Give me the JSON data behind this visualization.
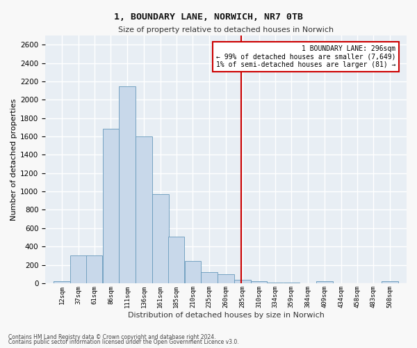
{
  "title1": "1, BOUNDARY LANE, NORWICH, NR7 0TB",
  "title2": "Size of property relative to detached houses in Norwich",
  "xlabel": "Distribution of detached houses by size in Norwich",
  "ylabel": "Number of detached properties",
  "bar_color": "#c8d8ea",
  "bar_edge_color": "#6699bb",
  "background_color": "#e8eef4",
  "figure_color": "#f8f8f8",
  "grid_color": "#ffffff",
  "vline_x": 296,
  "vline_color": "#cc0000",
  "annotation_text": "1 BOUNDARY LANE: 296sqm\n← 99% of detached houses are smaller (7,649)\n1% of semi-detached houses are larger (81) →",
  "annotation_box_color": "#cc0000",
  "footnote1": "Contains HM Land Registry data © Crown copyright and database right 2024.",
  "footnote2": "Contains public sector information licensed under the Open Government Licence v3.0.",
  "bins": [
    12,
    37,
    61,
    86,
    111,
    136,
    161,
    185,
    210,
    235,
    260,
    285,
    310,
    334,
    359,
    384,
    409,
    434,
    458,
    483,
    508
  ],
  "counts": [
    20,
    300,
    300,
    1680,
    2150,
    1600,
    970,
    510,
    245,
    120,
    100,
    40,
    20,
    10,
    5,
    3,
    20,
    3,
    3,
    3,
    20
  ],
  "ylim": [
    0,
    2700
  ],
  "yticks": [
    0,
    200,
    400,
    600,
    800,
    1000,
    1200,
    1400,
    1600,
    1800,
    2000,
    2200,
    2400,
    2600
  ]
}
